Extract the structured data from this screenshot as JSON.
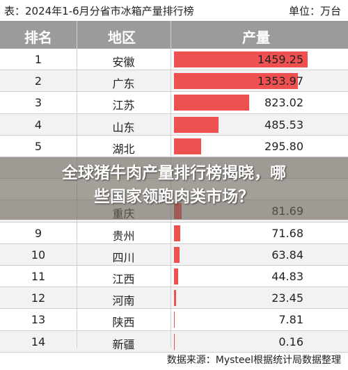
{
  "caption": {
    "title": "表：2024年1-6月分省市冰箱产量排行榜",
    "unit": "单位：万台"
  },
  "overlay": {
    "line1": "全球猪牛肉产量排行榜揭晓，哪",
    "line2": "些国家领跑肉类市场？"
  },
  "source": "数据来源：Mysteel根据统计局数据整理",
  "chart_data": {
    "type": "table",
    "columns": [
      "排名",
      "地区",
      "产量"
    ],
    "rows": [
      {
        "rank": "1",
        "region": "安徽",
        "value": 1459.25,
        "value_label": "1459.25"
      },
      {
        "rank": "2",
        "region": "广东",
        "value": 1353.97,
        "value_label": "1353.97"
      },
      {
        "rank": "3",
        "region": "江苏",
        "value": 823.02,
        "value_label": "823.02"
      },
      {
        "rank": "4",
        "region": "山东",
        "value": 485.53,
        "value_label": "485.53"
      },
      {
        "rank": "5",
        "region": "湖北",
        "value": 295.8,
        "value_label": "295.80"
      },
      {
        "rank": "",
        "region": "",
        "value": null,
        "value_label": ""
      },
      {
        "rank": "",
        "region": "",
        "value": null,
        "value_label": ""
      },
      {
        "rank": "",
        "region": "重庆",
        "value": 81.69,
        "value_label": "81.69"
      },
      {
        "rank": "9",
        "region": "贵州",
        "value": 71.68,
        "value_label": "71.68"
      },
      {
        "rank": "10",
        "region": "四川",
        "value": 63.84,
        "value_label": "63.84"
      },
      {
        "rank": "11",
        "region": "江西",
        "value": 44.83,
        "value_label": "44.83"
      },
      {
        "rank": "12",
        "region": "河南",
        "value": 23.45,
        "value_label": "23.45"
      },
      {
        "rank": "13",
        "region": "陕西",
        "value": 7.81,
        "value_label": "7.81"
      },
      {
        "rank": "14",
        "region": "新疆",
        "value": 0.16,
        "value_label": "0.16"
      }
    ],
    "bar_color": "#ef5050",
    "max_value": 1459.25
  }
}
